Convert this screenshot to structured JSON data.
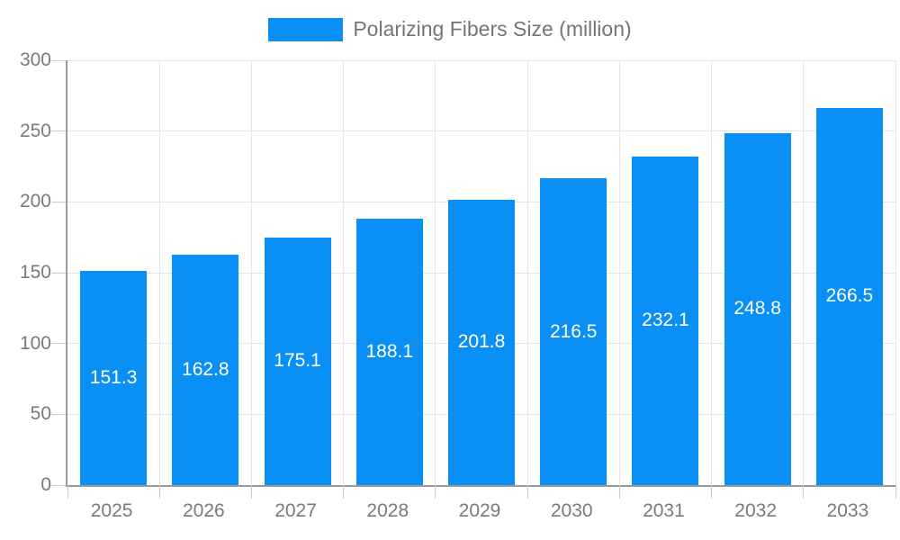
{
  "chart_data": {
    "type": "bar",
    "title": "Polarizing Fibers Size (million)",
    "categories": [
      "2025",
      "2026",
      "2027",
      "2028",
      "2029",
      "2030",
      "2031",
      "2032",
      "2033"
    ],
    "values": [
      151.3,
      162.8,
      175.1,
      188.1,
      201.8,
      216.5,
      232.1,
      248.8,
      266.5
    ],
    "xlabel": "",
    "ylabel": "",
    "ylim": [
      0,
      300
    ],
    "yticks": [
      0,
      50,
      100,
      150,
      200,
      250,
      300
    ],
    "grid": true,
    "legend_position": "top-center",
    "bar_color": "#0a90f4",
    "bar_label_color": "#ffffff",
    "axis_line_color": "#9a9a9a",
    "gridline_color": "#e6e6e6",
    "tick_color": "#c9c9c9",
    "axis_text_color": "#7a7a7a",
    "legend_text_color": "#757575"
  }
}
